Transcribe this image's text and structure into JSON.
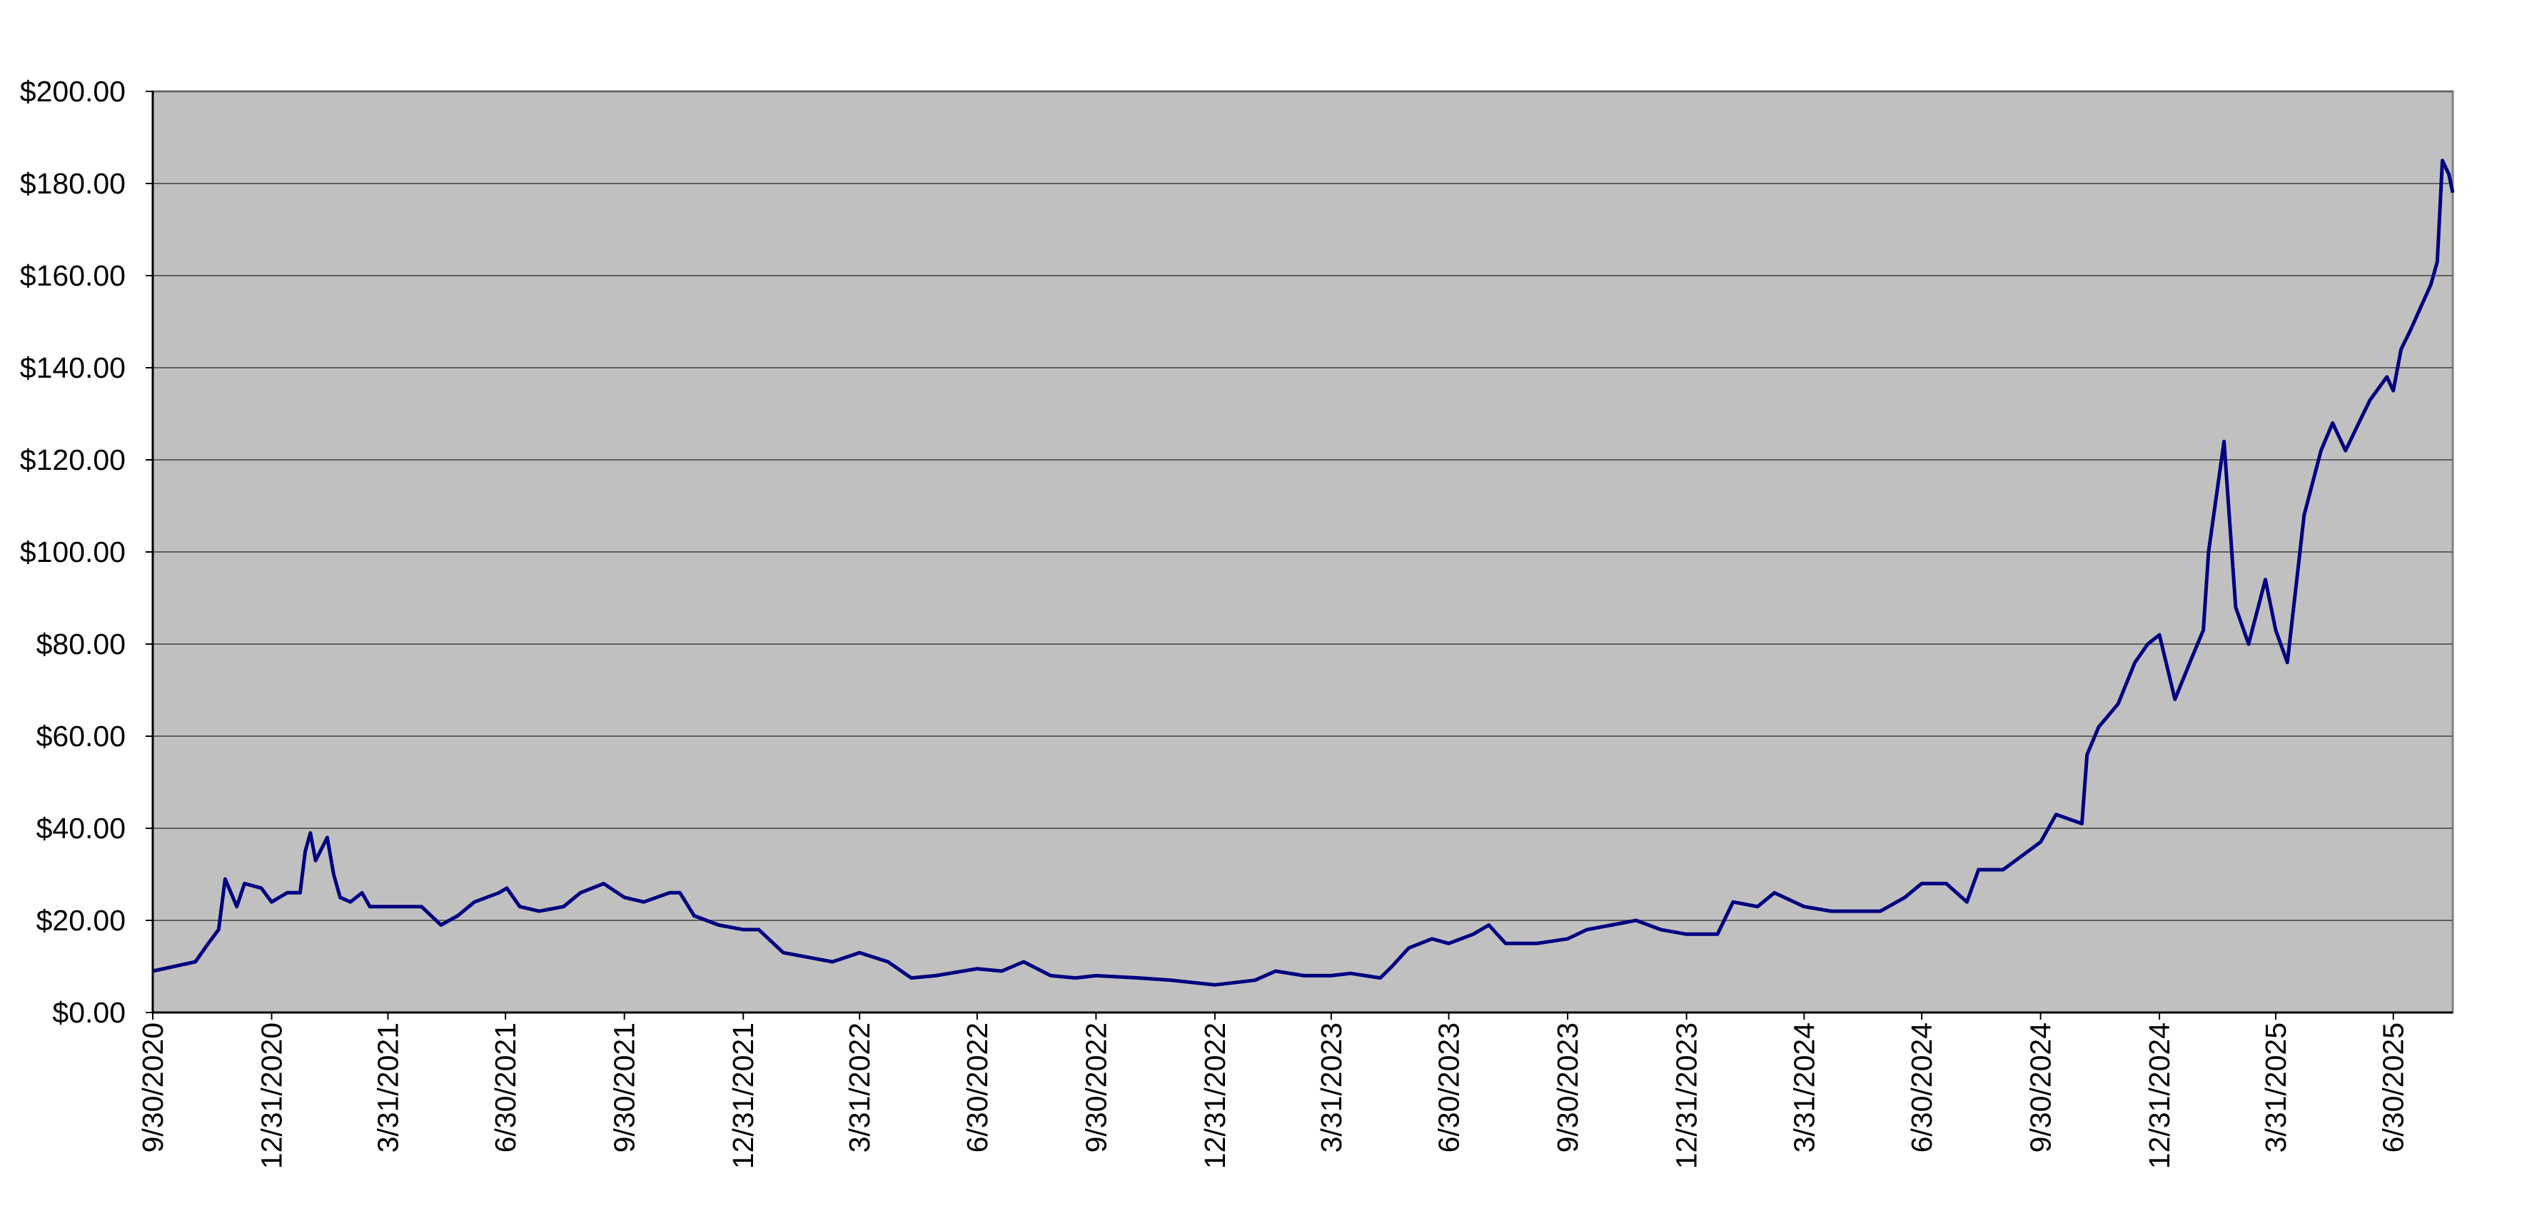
{
  "chart_data": {
    "type": "line",
    "x": [
      "9/30/2020",
      "11/2/2020",
      "11/12/2020",
      "11/20/2020",
      "11/25/2020",
      "12/4/2020",
      "12/10/2020",
      "12/23/2020",
      "12/31/2020",
      "1/12/2021",
      "1/22/2021",
      "1/26/2021",
      "1/30/2021",
      "2/3/2021",
      "2/12/2021",
      "2/17/2021",
      "2/22/2021",
      "3/2/2021",
      "3/11/2021",
      "3/17/2021",
      "3/31/2021",
      "4/13/2021",
      "4/26/2021",
      "5/11/2021",
      "5/24/2021",
      "6/6/2021",
      "6/25/2021",
      "7/1/2021",
      "7/11/2021",
      "7/26/2021",
      "8/14/2021",
      "8/27/2021",
      "9/14/2021",
      "9/30/2021",
      "10/15/2021",
      "11/4/2021",
      "11/12/2021",
      "11/23/2021",
      "12/12/2021",
      "12/31/2021",
      "1/12/2022",
      "1/31/2022",
      "2/19/2022",
      "3/10/2022",
      "3/31/2022",
      "4/22/2022",
      "5/10/2022",
      "5/29/2022",
      "6/30/2022",
      "7/19/2022",
      "8/5/2022",
      "8/26/2022",
      "9/14/2022",
      "9/30/2022",
      "11/2/2022",
      "11/27/2022",
      "12/31/2022",
      "1/31/2023",
      "2/16/2023",
      "3/10/2023",
      "3/31/2023",
      "4/15/2023",
      "5/8/2023",
      "5/17/2023",
      "5/30/2023",
      "6/17/2023",
      "6/30/2023",
      "7/19/2023",
      "7/31/2023",
      "8/13/2023",
      "9/6/2023",
      "9/30/2023",
      "10/15/2023",
      "11/3/2023",
      "11/22/2023",
      "12/11/2023",
      "12/31/2023",
      "1/24/2024",
      "2/5/2024",
      "2/24/2024",
      "3/8/2024",
      "3/31/2024",
      "4/21/2024",
      "5/10/2024",
      "5/29/2024",
      "6/17/2024",
      "6/30/2024",
      "7/19/2024",
      "8/4/2024",
      "8/13/2024",
      "9/1/2024",
      "9/30/2024",
      "10/12/2024",
      "11/1/2024",
      "11/5/2024",
      "11/14/2024",
      "11/29/2024",
      "12/12/2024",
      "12/22/2024",
      "12/31/2024",
      "1/12/2025",
      "1/25/2025",
      "2/3/2025",
      "2/7/2025",
      "2/19/2025",
      "2/28/2025",
      "3/10/2025",
      "3/23/2025",
      "3/31/2025",
      "4/9/2025",
      "4/22/2025",
      "5/5/2025",
      "5/14/2025",
      "5/24/2025",
      "6/5/2025",
      "6/12/2025",
      "6/25/2025",
      "6/30/2025",
      "7/6/2025",
      "7/13/2025",
      "7/21/2025",
      "7/29/2025",
      "8/3/2025",
      "8/7/2025",
      "8/12/2025",
      "8/15/2025"
    ],
    "series": [
      {
        "color": "#000080",
        "values": [
          9,
          11,
          15,
          18,
          29,
          23,
          28,
          27,
          24,
          26,
          26,
          35,
          39,
          33,
          38,
          30,
          25,
          24,
          26,
          23,
          23,
          23,
          23,
          19,
          21,
          24,
          26,
          27,
          23,
          22,
          23,
          26,
          28,
          25,
          24,
          26,
          26,
          21,
          19,
          18,
          18,
          13,
          12,
          11,
          13,
          11,
          7.5,
          8,
          9.5,
          9,
          11,
          8,
          7.5,
          8,
          7.5,
          7,
          6,
          7,
          9,
          8,
          8,
          8.5,
          7.5,
          10,
          14,
          16,
          15,
          17,
          19,
          15,
          15,
          16,
          18,
          19,
          20,
          18,
          17,
          17,
          24,
          23,
          26,
          23,
          22,
          22,
          22,
          25,
          28,
          28,
          24,
          31,
          31,
          37,
          43,
          41,
          56,
          62,
          67,
          76,
          80,
          82,
          68,
          77,
          83,
          100,
          124,
          88,
          80,
          94,
          83,
          76,
          108,
          122,
          128,
          122,
          129,
          133,
          138,
          135,
          144,
          148,
          153,
          158,
          163,
          185,
          182,
          178
        ]
      }
    ],
    "xlim": [
      "9/30/2020",
      "8/15/2025"
    ],
    "xticks": [
      "9/30/2020",
      "12/31/2020",
      "3/31/2021",
      "6/30/2021",
      "9/30/2021",
      "12/31/2021",
      "3/31/2022",
      "6/30/2022",
      "9/30/2022",
      "12/31/2022",
      "3/31/2023",
      "6/30/2023",
      "9/30/2023",
      "12/31/2023",
      "3/31/2024",
      "6/30/2024",
      "9/30/2024",
      "12/31/2024",
      "3/31/2025",
      "6/30/2025"
    ],
    "ylim": [
      0,
      200
    ],
    "yticks": [
      {
        "value": 0,
        "label": "$0.00"
      },
      {
        "value": 20,
        "label": "$20.00"
      },
      {
        "value": 40,
        "label": "$40.00"
      },
      {
        "value": 60,
        "label": "$60.00"
      },
      {
        "value": 80,
        "label": "$80.00"
      },
      {
        "value": 100,
        "label": "$100.00"
      },
      {
        "value": 120,
        "label": "$120.00"
      },
      {
        "value": 140,
        "label": "$140.00"
      },
      {
        "value": 160,
        "label": "$160.00"
      },
      {
        "value": 180,
        "label": "$180.00"
      },
      {
        "value": 200,
        "label": "$200.00"
      }
    ],
    "grid": true
  }
}
